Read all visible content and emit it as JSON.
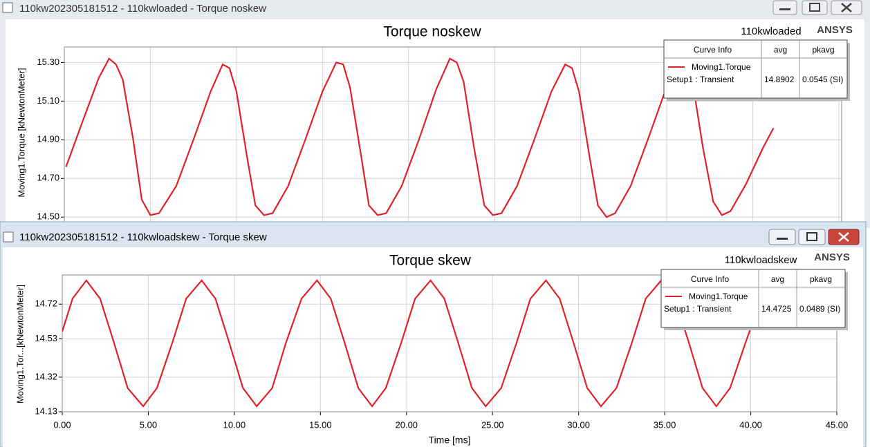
{
  "windows": [
    {
      "title": "110kw202305181512 - 110kwloaded - Torque noskew"
    },
    {
      "title": "110kw202305181512 - 110kwloadskew - Torque skew"
    }
  ],
  "chart_data": [
    {
      "type": "line",
      "title": "Torque noskew",
      "design": "110kwloaded",
      "brand": "ANSYS",
      "y_label": "Moving1.Torque [kNewtonMeter]",
      "x": [
        0.1,
        1.0,
        2.0,
        2.6,
        3.0,
        3.4,
        4.0,
        4.5,
        5.0,
        5.5,
        6.5,
        7.5,
        8.5,
        9.2,
        9.6,
        10.0,
        10.6,
        11.1,
        11.6,
        12.1,
        13.0,
        14.0,
        15.0,
        15.8,
        16.2,
        16.6,
        17.2,
        17.7,
        18.2,
        18.7,
        19.6,
        20.6,
        21.6,
        22.4,
        22.8,
        23.2,
        23.8,
        24.4,
        24.9,
        25.4,
        26.3,
        27.3,
        28.3,
        29.1,
        29.5,
        29.9,
        30.5,
        31.0,
        31.5,
        32.0,
        32.9,
        33.9,
        34.9,
        35.7,
        36.1,
        36.5,
        37.1,
        37.7,
        38.2,
        38.7,
        39.6,
        40.6,
        41.2
      ],
      "series": [
        {
          "name": "Moving1.Torque",
          "color": "#e0202a",
          "values": [
            14.76,
            14.98,
            15.22,
            15.32,
            15.29,
            15.21,
            14.9,
            14.59,
            14.51,
            14.52,
            14.66,
            14.9,
            15.15,
            15.29,
            15.27,
            15.15,
            14.82,
            14.56,
            14.51,
            14.52,
            14.66,
            14.9,
            15.15,
            15.3,
            15.29,
            15.17,
            14.84,
            14.56,
            14.51,
            14.52,
            14.66,
            14.9,
            15.16,
            15.32,
            15.3,
            15.2,
            14.86,
            14.56,
            14.51,
            14.52,
            14.66,
            14.9,
            15.15,
            15.29,
            15.27,
            15.15,
            14.82,
            14.56,
            14.5,
            14.52,
            14.66,
            14.9,
            15.15,
            15.31,
            15.3,
            15.2,
            14.86,
            14.58,
            14.51,
            14.53,
            14.67,
            14.86,
            14.96
          ]
        }
      ],
      "legend": {
        "headers": [
          "Curve Info",
          "avg",
          "pkavg"
        ],
        "setup": "Setup1 : Transient",
        "avg": "14.8902",
        "pkavg": "0.0545 (SI)"
      },
      "xlim": [
        0,
        45
      ],
      "xticks": [
        0,
        5,
        10,
        15,
        20,
        25,
        30,
        35,
        40,
        45
      ],
      "ylim": [
        14.44,
        15.38
      ],
      "yticks": [
        {
          "value": 14.5,
          "label": "14.50"
        },
        {
          "value": 14.7,
          "label": "14.70"
        },
        {
          "value": 14.9,
          "label": "14.90"
        },
        {
          "value": 15.1,
          "label": "15.10"
        },
        {
          "value": 15.3,
          "label": "15.30"
        }
      ],
      "grid": true
    },
    {
      "type": "line",
      "title": "Torque skew",
      "design": "110kwloadskew",
      "brand": "ANSYS",
      "y_label": "Moving1.Tor...[kNewtonMeter]",
      "x_label": "Time [ms]",
      "x": [
        0,
        0.6,
        1.4,
        2.2,
        3.0,
        3.8,
        4.7,
        5.5,
        6.4,
        7.2,
        8.1,
        8.9,
        9.7,
        10.5,
        11.3,
        12.2,
        13.0,
        13.9,
        14.8,
        15.6,
        16.4,
        17.2,
        18.0,
        18.8,
        19.7,
        20.5,
        21.4,
        22.2,
        23.0,
        23.8,
        24.6,
        25.5,
        26.4,
        27.2,
        28.1,
        28.9,
        29.7,
        30.5,
        31.3,
        32.2,
        33.1,
        33.9,
        34.8,
        35.6,
        36.4,
        37.2,
        38.0,
        38.8,
        39.7,
        40.5
      ],
      "series": [
        {
          "name": "Moving1.Torque",
          "color": "#e0202a",
          "values": [
            14.57,
            14.75,
            14.85,
            14.75,
            14.51,
            14.26,
            14.16,
            14.26,
            14.51,
            14.75,
            14.85,
            14.75,
            14.51,
            14.26,
            14.16,
            14.26,
            14.51,
            14.75,
            14.85,
            14.75,
            14.51,
            14.26,
            14.16,
            14.26,
            14.51,
            14.75,
            14.85,
            14.75,
            14.51,
            14.26,
            14.16,
            14.26,
            14.51,
            14.75,
            14.85,
            14.75,
            14.51,
            14.26,
            14.16,
            14.26,
            14.51,
            14.75,
            14.85,
            14.75,
            14.51,
            14.26,
            14.16,
            14.26,
            14.51,
            14.72
          ]
        }
      ],
      "legend": {
        "headers": [
          "Curve Info",
          "avg",
          "pkavg"
        ],
        "setup": "Setup1 : Transient",
        "avg": "14.4725",
        "pkavg": "0.0489 (SI)"
      },
      "xlim": [
        0,
        45
      ],
      "xticks": [
        {
          "value": 0,
          "label": "0.00"
        },
        {
          "value": 5,
          "label": "5.00"
        },
        {
          "value": 10,
          "label": "10.00"
        },
        {
          "value": 15,
          "label": "15.00"
        },
        {
          "value": 20,
          "label": "20.00"
        },
        {
          "value": 25,
          "label": "25.00"
        },
        {
          "value": 30,
          "label": "30.00"
        },
        {
          "value": 35,
          "label": "35.00"
        },
        {
          "value": 40,
          "label": "40.00"
        },
        {
          "value": 45,
          "label": "45.00"
        }
      ],
      "ylim": [
        14.13,
        14.88
      ],
      "yticks": [
        14.13,
        14.32,
        14.53,
        14.72
      ],
      "grid": true
    }
  ]
}
